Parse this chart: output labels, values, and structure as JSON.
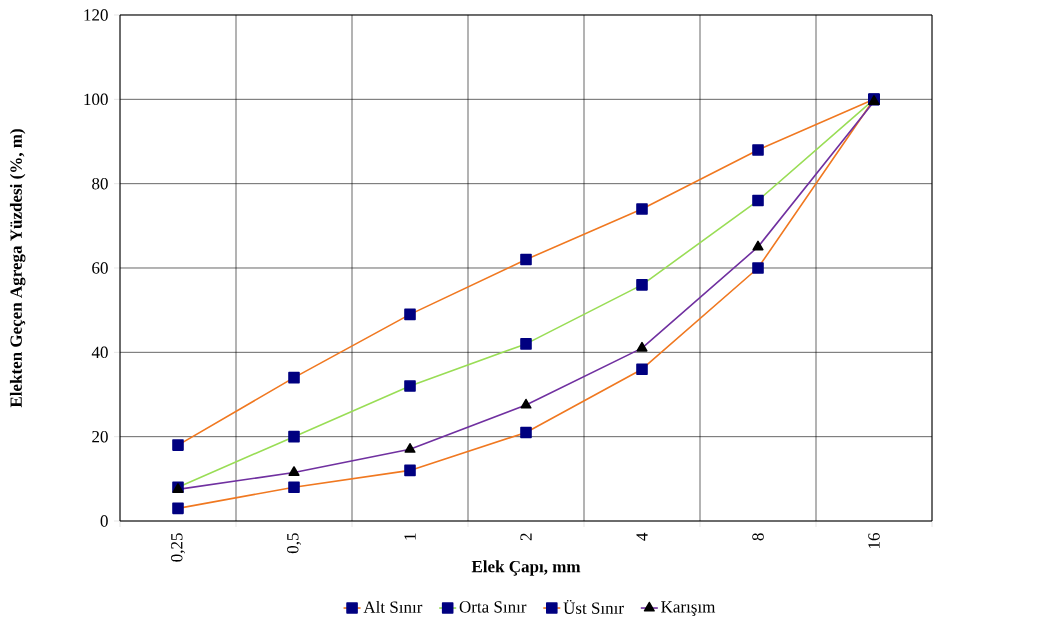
{
  "chart_data": {
    "type": "line",
    "xlabel": "Elek Çapı, mm",
    "ylabel": "Elekten Geçen Agrega Yüzdesi (%, m)",
    "categories": [
      "0,25",
      "0,5",
      "1",
      "2",
      "4",
      "8",
      "16"
    ],
    "series": [
      {
        "name": "Alt Sınır",
        "color": "#f07820",
        "marker": "square",
        "values": [
          3,
          8,
          12,
          21,
          36,
          60,
          100
        ]
      },
      {
        "name": "Orta Sınır",
        "color": "#99dd55",
        "marker": "square",
        "values": [
          8,
          20,
          32,
          42,
          56,
          76,
          100
        ]
      },
      {
        "name": "Üst Sınır",
        "color": "#f07820",
        "marker": "square",
        "values": [
          18,
          34,
          49,
          62,
          74,
          88,
          100
        ]
      },
      {
        "name": "Karışım",
        "color": "#7030a0",
        "marker": "triangle",
        "values": [
          7.5,
          11.5,
          17,
          27.5,
          41,
          65,
          99.5
        ]
      }
    ],
    "ylim": [
      0,
      120
    ],
    "yticks": [
      0,
      20,
      40,
      60,
      80,
      100,
      120
    ],
    "grid": true,
    "legend": "bottom",
    "line_style": "solid"
  }
}
